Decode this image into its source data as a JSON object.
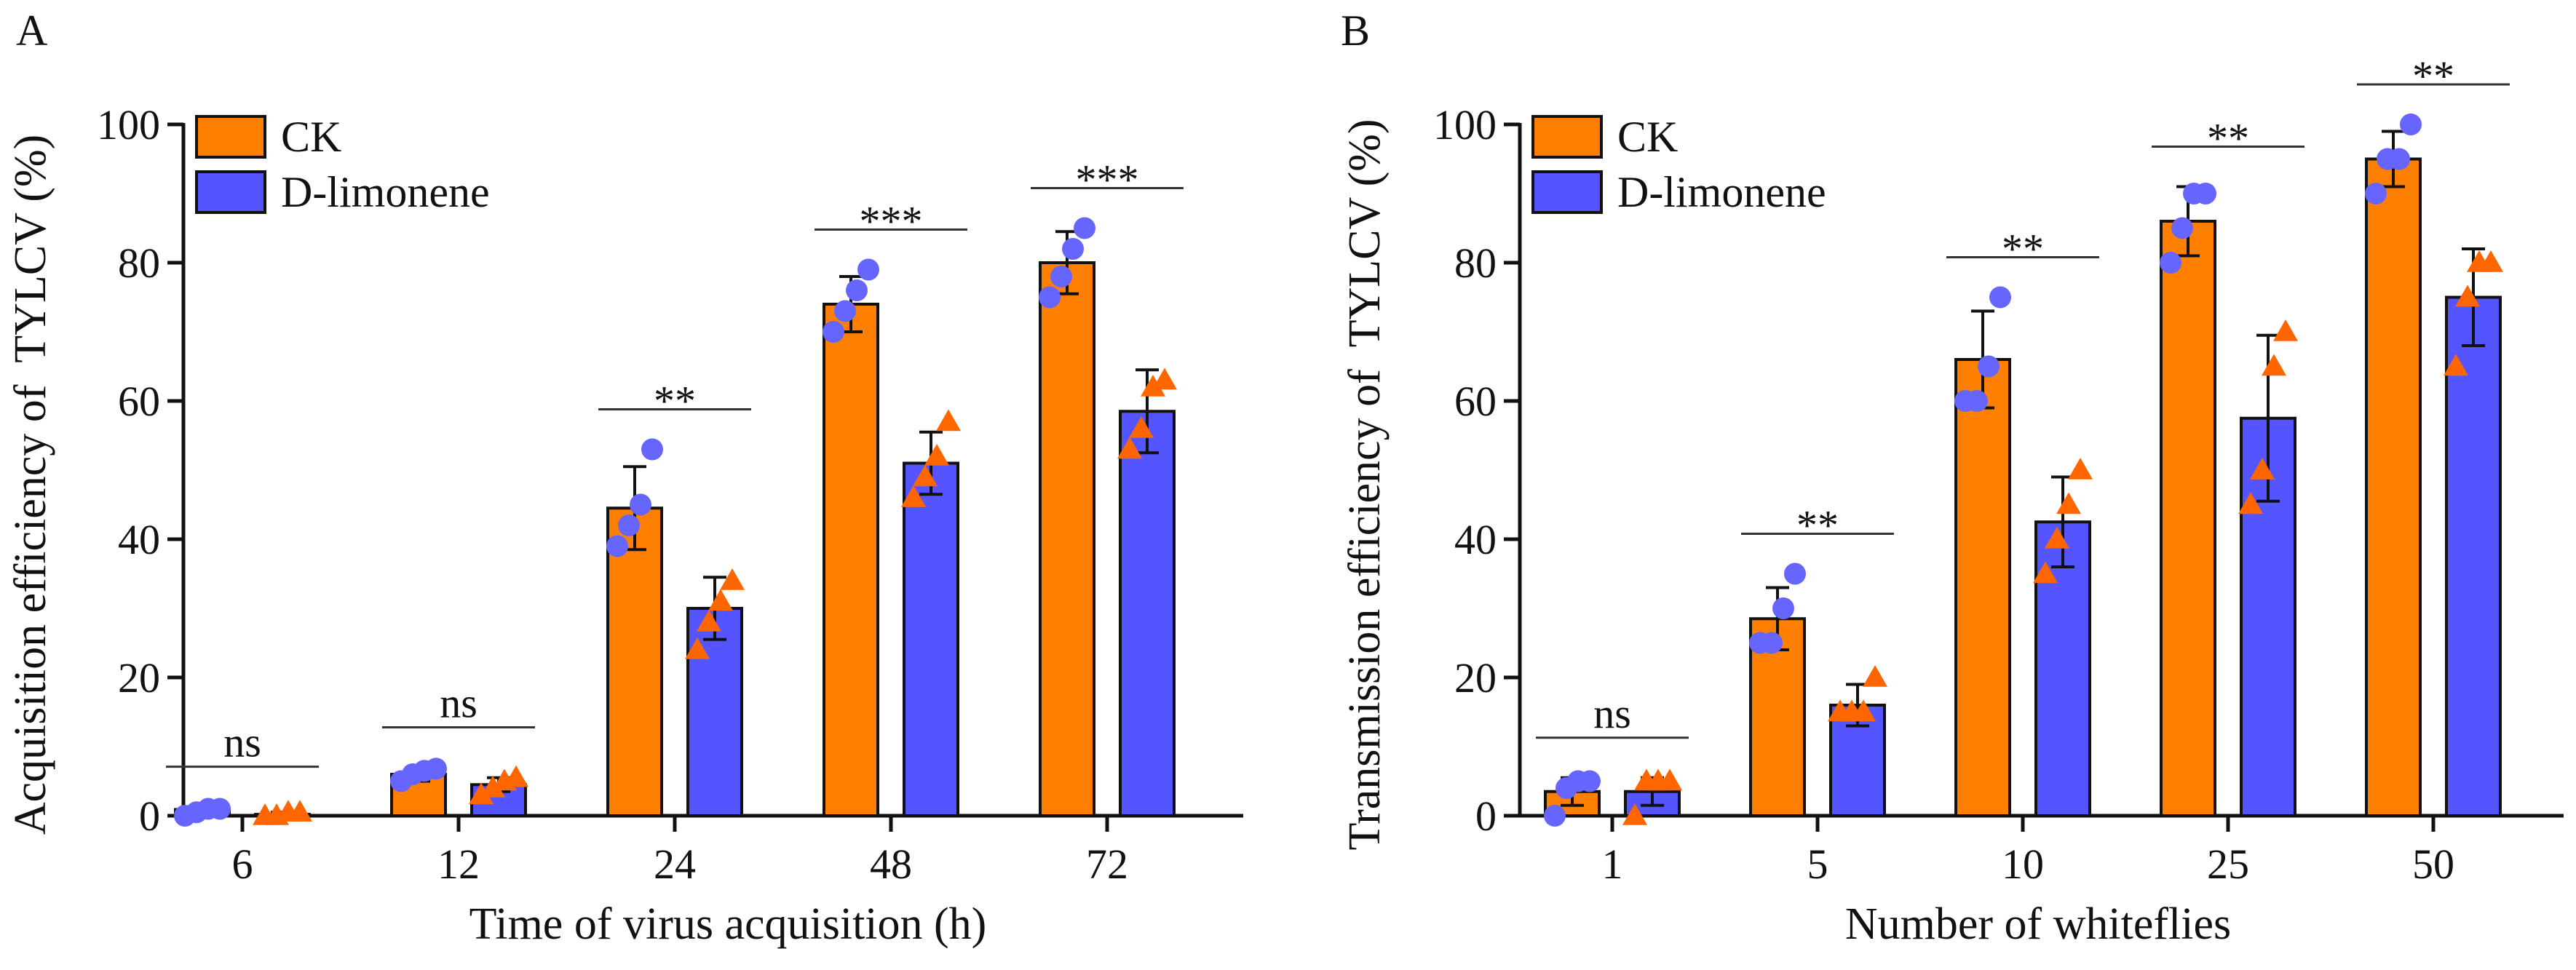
{
  "colors": {
    "ck": "#FF8000",
    "dlim": "#5555FF",
    "ck_points": "#6666FF",
    "dlim_points": "#FF6600",
    "axis": "#111111"
  },
  "chart_data": [
    {
      "type": "bar",
      "panel": "A",
      "title": "",
      "xlabel": "Time of virus acquisition (h)",
      "ylabel": "Acquisition efficiency of  TYLCV (%)",
      "ylim": [
        0,
        100
      ],
      "yticks": [
        0,
        20,
        40,
        60,
        80,
        100
      ],
      "categories": [
        "6",
        "12",
        "24",
        "48",
        "72"
      ],
      "legend": {
        "position": "top-left",
        "entries": [
          "CK",
          "D-limonene"
        ]
      },
      "series": [
        {
          "name": "CK",
          "values": [
            0.9,
            6.0,
            44.5,
            74.0,
            80.0
          ],
          "errors": [
            0.4,
            1.0,
            6.0,
            4.0,
            4.5
          ],
          "points": [
            [
              0,
              0.5,
              1,
              1
            ],
            [
              5,
              6,
              6.5,
              6.8
            ],
            [
              39,
              42,
              45,
              53
            ],
            [
              70,
              73,
              76,
              79
            ],
            [
              75,
              78,
              82,
              85
            ]
          ]
        },
        {
          "name": "D-limonene",
          "values": [
            0.2,
            4.5,
            30.0,
            51.0,
            58.5
          ],
          "errors": [
            0.3,
            1.0,
            4.5,
            4.5,
            6.0
          ],
          "points": [
            [
              0,
              0,
              0.5,
              0.5
            ],
            [
              3,
              4,
              5,
              5.5
            ],
            [
              24,
              28,
              31,
              34
            ],
            [
              46,
              49,
              52,
              57
            ],
            [
              53,
              56,
              62,
              63
            ]
          ]
        }
      ],
      "significance": [
        "ns",
        "ns",
        "**",
        "***",
        "***"
      ]
    },
    {
      "type": "bar",
      "panel": "B",
      "title": "",
      "xlabel": "Number of whiteflies",
      "ylabel": "Transmission efficiency of  TYLCV (%)",
      "ylim": [
        0,
        100
      ],
      "yticks": [
        0,
        20,
        40,
        60,
        80,
        100
      ],
      "categories": [
        "1",
        "5",
        "10",
        "25",
        "50"
      ],
      "legend": {
        "position": "top-left",
        "entries": [
          "CK",
          "D-limonene"
        ]
      },
      "series": [
        {
          "name": "CK",
          "values": [
            3.5,
            28.5,
            66.0,
            86.0,
            95.0
          ],
          "errors": [
            2.0,
            4.5,
            7.0,
            5.0,
            4.0
          ],
          "points": [
            [
              0,
              4,
              5,
              5
            ],
            [
              25,
              25,
              30,
              35
            ],
            [
              60,
              60,
              65,
              75
            ],
            [
              80,
              85,
              90,
              90
            ],
            [
              90,
              95,
              95,
              100
            ]
          ]
        },
        {
          "name": "D-limonene",
          "values": [
            3.5,
            16.0,
            42.5,
            57.5,
            75.0
          ],
          "errors": [
            2.0,
            3.0,
            6.5,
            12.0,
            7.0
          ],
          "points": [
            [
              0,
              5,
              5,
              5
            ],
            [
              15,
              15,
              15,
              20
            ],
            [
              35,
              40,
              45,
              50
            ],
            [
              45,
              50,
              65,
              70
            ],
            [
              65,
              75,
              80,
              80
            ]
          ]
        }
      ],
      "significance": [
        "ns",
        "**",
        "**",
        "**",
        "**"
      ]
    }
  ]
}
